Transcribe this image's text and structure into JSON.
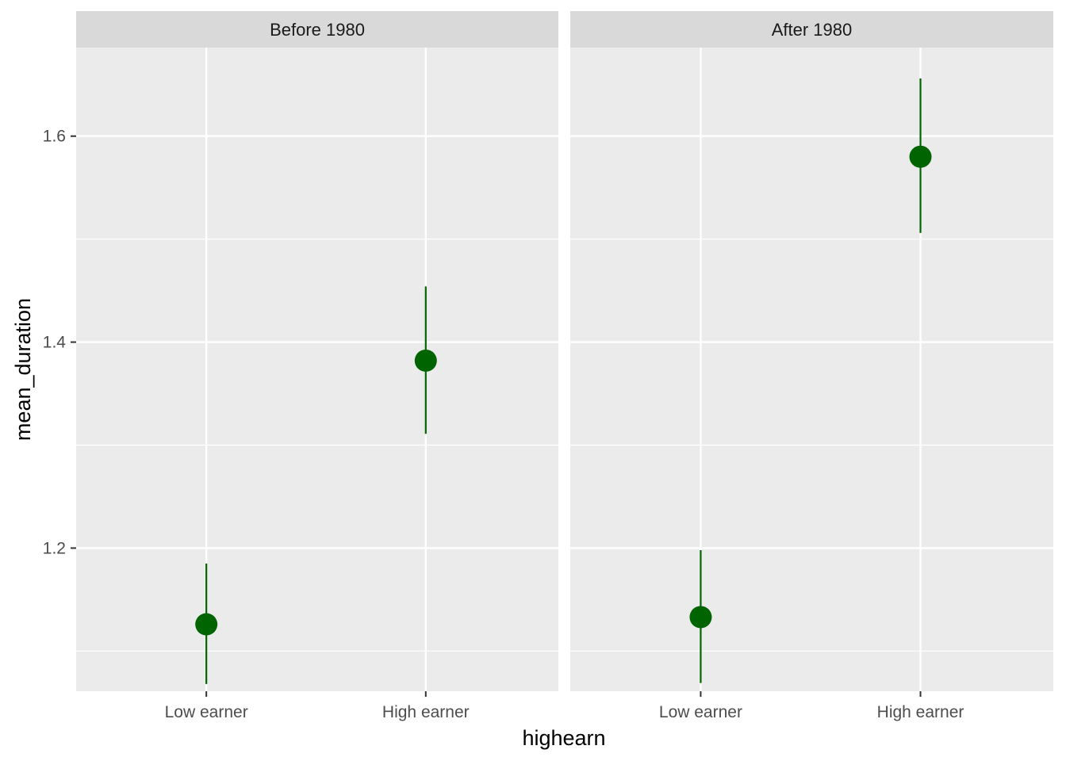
{
  "chart_data": {
    "type": "scatter",
    "subtype": "pointrange-faceted",
    "xlabel": "highearn",
    "ylabel": "mean_duration",
    "categories": [
      "Low earner",
      "High earner"
    ],
    "y_ticks": [
      1.2,
      1.4,
      1.6
    ],
    "ylim": [
      1.061,
      1.686
    ],
    "grid": true,
    "point_color": "#006400",
    "facets": [
      {
        "label": "Before 1980",
        "points": [
          {
            "category": "Low earner",
            "y": 1.126,
            "ymin": 1.068,
            "ymax": 1.185
          },
          {
            "category": "High earner",
            "y": 1.382,
            "ymin": 1.311,
            "ymax": 1.454
          }
        ]
      },
      {
        "label": "After 1980",
        "points": [
          {
            "category": "Low earner",
            "y": 1.133,
            "ymin": 1.069,
            "ymax": 1.198
          },
          {
            "category": "High earner",
            "y": 1.58,
            "ymin": 1.506,
            "ymax": 1.656
          }
        ]
      }
    ]
  }
}
